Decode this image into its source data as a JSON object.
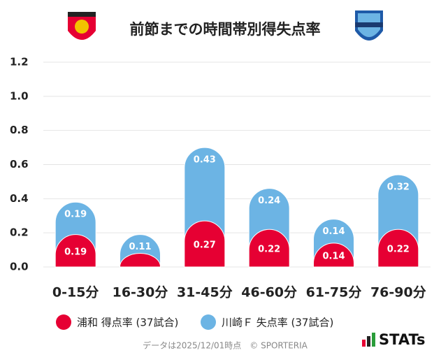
{
  "chart_data": {
    "type": "stacked-bar",
    "title": "前節までの時間帯別得失点率",
    "categories": [
      "0-15分",
      "16-30分",
      "31-45分",
      "46-60分",
      "61-75分",
      "76-90分"
    ],
    "series": [
      {
        "name": "浦和 得点率 (37試合)",
        "color": "#e60033",
        "values": [
          0.19,
          0.08,
          0.27,
          0.22,
          0.14,
          0.22
        ],
        "value_labels": [
          "0.19",
          null,
          "0.27",
          "0.22",
          "0.14",
          "0.22"
        ]
      },
      {
        "name": "川崎Ｆ 失点率 (37試合)",
        "color": "#6cb4e4",
        "values": [
          0.19,
          0.11,
          0.43,
          0.24,
          0.14,
          0.32
        ]
      }
    ],
    "ylim": [
      0,
      1.2
    ],
    "yticks": [
      {
        "value": 0,
        "label": "0.0"
      },
      0.2,
      0.4,
      0.6,
      0.8,
      {
        "value": 1,
        "label": "1.0"
      },
      1.2
    ],
    "grid": true,
    "footnote": "データは2025/12/01時点　© SPORTERIA",
    "brand": "STATs"
  }
}
